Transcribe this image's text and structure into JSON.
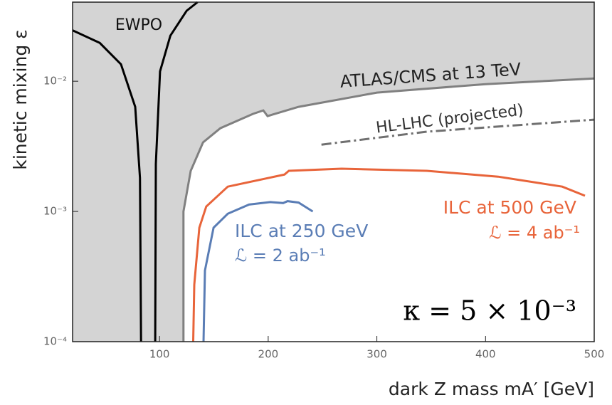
{
  "chart_data": {
    "type": "line",
    "xlabel": "dark Z mass  mA′ [GeV]",
    "ylabel": "kinetic mixing  ε",
    "xlim": [
      20,
      500
    ],
    "ylim": [
      0.0001,
      0.0405
    ],
    "ylog": true,
    "xticks": [
      100,
      200,
      300,
      400,
      500
    ],
    "yticks": [
      {
        "value": 0.0001,
        "label": "10⁻⁴"
      },
      {
        "value": 0.001,
        "label": "10⁻³"
      },
      {
        "value": 0.01,
        "label": "10⁻²"
      }
    ],
    "shade_color": "#d4d4d4",
    "series": [
      {
        "color": "#000000",
        "style": "solid",
        "x": [
          20,
          45,
          64.5,
          77.6,
          82,
          83
        ],
        "values": [
          0.0246,
          0.0197,
          0.0135,
          0.00636,
          0.00181,
          0.0001
        ]
      },
      {
        "color": "#000000",
        "style": "solid",
        "x": [
          96,
          96.6,
          100.5,
          110,
          125,
          135
        ],
        "values": [
          0.0001,
          0.00232,
          0.0119,
          0.0224,
          0.0348,
          0.0405
        ]
      },
      {
        "color": "#808080",
        "style": "solid",
        "shade_above": true,
        "x": [
          122,
          122,
          128.7,
          140,
          156,
          186,
          195.5,
          199.4,
          228,
          300,
          400,
          500
        ],
        "values": [
          0.0001,
          0.001,
          0.00205,
          0.00339,
          0.00436,
          0.00561,
          0.00597,
          0.0054,
          0.00636,
          0.00818,
          0.0095,
          0.0105
        ]
      },
      {
        "color": "#707070",
        "style": "dashdot",
        "x": [
          249,
          346,
          500
        ],
        "values": [
          0.00326,
          0.0041,
          0.00507
        ]
      },
      {
        "color": "#e8643a",
        "style": "solid",
        "x": [
          131,
          132,
          136.6,
          143,
          162.8,
          215,
          219,
          267.5,
          346,
          411.6,
          470.6,
          491.5
        ],
        "values": [
          0.0001,
          0.000274,
          0.00075,
          0.00109,
          0.00155,
          0.00192,
          0.00205,
          0.00213,
          0.00205,
          0.00185,
          0.00155,
          0.00132
        ]
      },
      {
        "color": "#5a7db5",
        "style": "solid",
        "x": [
          140.5,
          141.8,
          149.7,
          162.8,
          182.4,
          202,
          213.8,
          217.8,
          228,
          241
        ],
        "values": [
          0.0001,
          0.000352,
          0.00075,
          0.00096,
          0.00113,
          0.00118,
          0.00116,
          0.0012,
          0.00117,
          0.001
        ]
      }
    ],
    "annotations": [
      {
        "text": "EWPO",
        "color": "#111111"
      },
      {
        "text": "ATLAS/CMS at 13 TeV",
        "color": "#222222"
      },
      {
        "text": "HL-LHC (projected)",
        "color": "#333333"
      },
      {
        "text": "ILC at 500 GeV",
        "color": "#e8643a"
      },
      {
        "text": "ℒ = 4 ab⁻¹",
        "color": "#e8643a"
      },
      {
        "text": "ILC at 250 GeV",
        "color": "#5a7db5"
      },
      {
        "text": "ℒ = 2 ab⁻¹",
        "color": "#5a7db5"
      },
      {
        "text": "κ = 5 × 10⁻³",
        "color": "#000000"
      }
    ]
  }
}
